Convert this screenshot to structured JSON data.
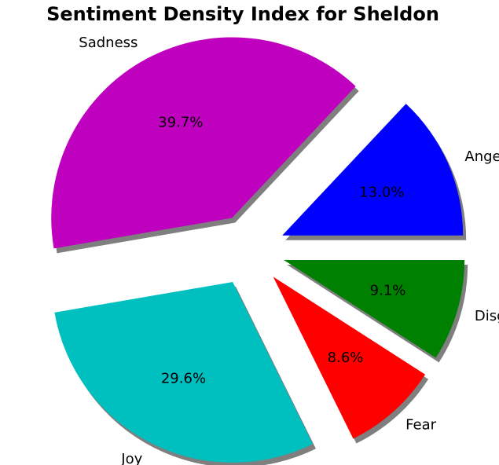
{
  "chart_data": {
    "type": "pie",
    "title": "Sentiment Density Index for Sheldon",
    "slices": [
      {
        "label": "Anger",
        "value": 13.0,
        "pct_label": "13.0%",
        "color": "#0000ff"
      },
      {
        "label": "Sadness",
        "value": 39.7,
        "pct_label": "39.7%",
        "color": "#bf00bf"
      },
      {
        "label": "Joy",
        "value": 29.6,
        "pct_label": "29.6%",
        "color": "#00bfbf"
      },
      {
        "label": "Fear",
        "value": 8.6,
        "pct_label": "8.6%",
        "color": "#ff0000"
      },
      {
        "label": "Disgust",
        "value": 9.1,
        "pct_label": "9.1%",
        "color": "#008000"
      }
    ],
    "start_angle_deg": 0,
    "direction": "counterclockwise",
    "exploded": true,
    "shadow": true,
    "legend": "none"
  }
}
